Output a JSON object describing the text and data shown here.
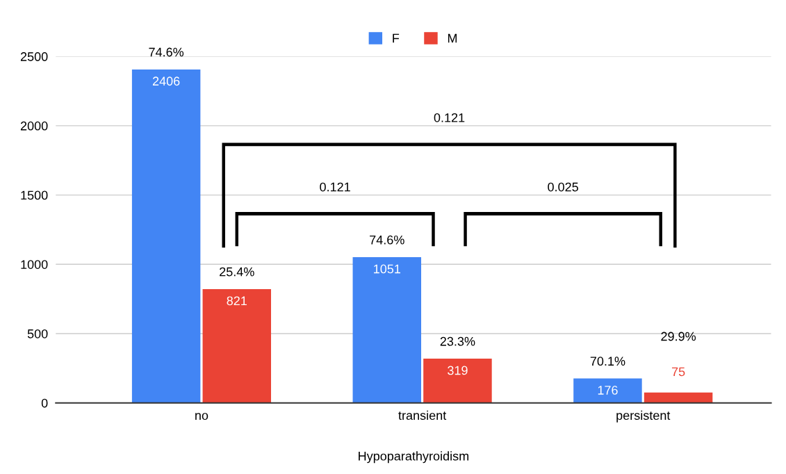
{
  "chart_data": {
    "type": "bar",
    "xlabel": "Hypoparathyroidism",
    "categories": [
      "no",
      "transient",
      "persistent"
    ],
    "series": [
      {
        "name": "F",
        "color": "#4285f4",
        "values": [
          2406,
          1051,
          176
        ]
      },
      {
        "name": "M",
        "color": "#ea4335",
        "values": [
          821,
          319,
          75
        ]
      }
    ],
    "ylim": [
      0,
      2500
    ],
    "yticks": [
      0,
      500,
      1000,
      1500,
      2000,
      2500
    ],
    "grid": "y",
    "legend": "top",
    "data_labels": true,
    "annotations": [
      {
        "text": "74.6%",
        "x": "no",
        "y": 2406
      },
      {
        "text": "25.4%",
        "x": "no",
        "y": 821
      },
      {
        "text": "74.6%",
        "x": "transient",
        "y": 1051
      },
      {
        "text": "23.3%",
        "x": "transient",
        "y": 319
      },
      {
        "text": "70.1%",
        "x": "persistent",
        "y": 176
      },
      "29.9%",
      "0.121",
      "0.121",
      "0.025"
    ]
  }
}
